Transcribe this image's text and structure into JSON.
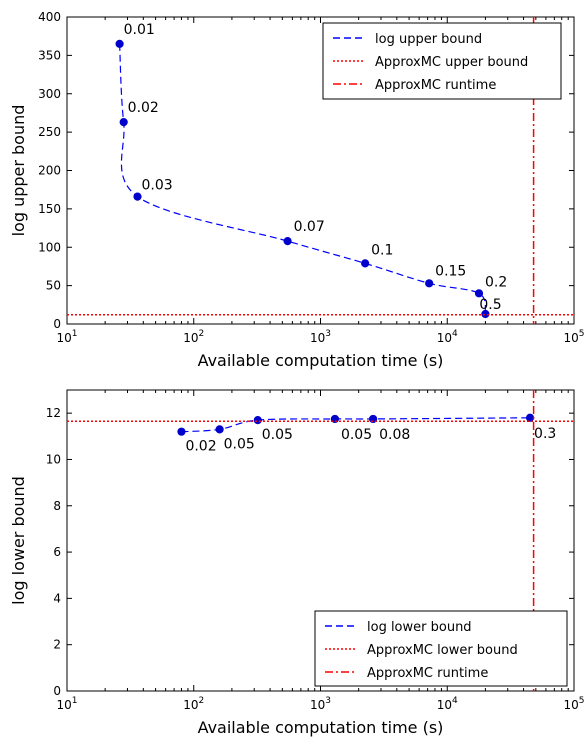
{
  "chart_data": [
    {
      "type": "line",
      "xscale": "log",
      "xlim": [
        10,
        100000
      ],
      "ylim": [
        0,
        400
      ],
      "xticks": [
        "10^1",
        "10^2",
        "10^3",
        "10^4",
        "10^5"
      ],
      "yticks": [
        0,
        50,
        100,
        150,
        200,
        250,
        300,
        350,
        400
      ],
      "xlabel": "Available computation time (s)",
      "ylabel": "log upper bound",
      "grid": false,
      "legend_position": "top-right",
      "series": [
        {
          "name": "log upper bound",
          "style": "dashed",
          "color": "#0000ff",
          "x": [
            26,
            28,
            36,
            550,
            2250,
            7200,
            17800,
            20000
          ],
          "y": [
            365,
            263,
            166,
            108,
            79,
            53,
            40,
            13
          ],
          "labels": [
            "0.01",
            "0.02",
            "0.03",
            "0.07",
            "0.1",
            "0.15",
            "0.2",
            "0.5"
          ]
        },
        {
          "name": "ApproxMC upper bound",
          "style": "dotted",
          "color": "#ff0000",
          "orientation": "horizontal",
          "y": 12
        },
        {
          "name": "ApproxMC runtime",
          "style": "dashdot",
          "color": "#ff0000",
          "orientation": "vertical",
          "x": 48000
        }
      ]
    },
    {
      "type": "line",
      "xscale": "log",
      "xlim": [
        10,
        100000
      ],
      "ylim": [
        0,
        13
      ],
      "xticks": [
        "10^1",
        "10^2",
        "10^3",
        "10^4",
        "10^5"
      ],
      "yticks": [
        0,
        2,
        4,
        6,
        8,
        10,
        12
      ],
      "xlabel": "Available computation time (s)",
      "ylabel": "log lower bound",
      "grid": false,
      "legend_position": "bottom-right",
      "series": [
        {
          "name": "log lower bound",
          "style": "dashed",
          "color": "#0000ff",
          "x": [
            80,
            160,
            320,
            1300,
            2600,
            45000
          ],
          "y": [
            11.2,
            11.3,
            11.7,
            11.75,
            11.75,
            11.8
          ],
          "labels": [
            "0.02",
            "0.05",
            "0.05",
            "0.05",
            "0.08",
            "0.3"
          ]
        },
        {
          "name": "ApproxMC lower bound",
          "style": "dotted",
          "color": "#ff0000",
          "orientation": "horizontal",
          "y": 11.65
        },
        {
          "name": "ApproxMC runtime",
          "style": "dashdot",
          "color": "#ff0000",
          "orientation": "vertical",
          "x": 48000
        }
      ]
    }
  ]
}
